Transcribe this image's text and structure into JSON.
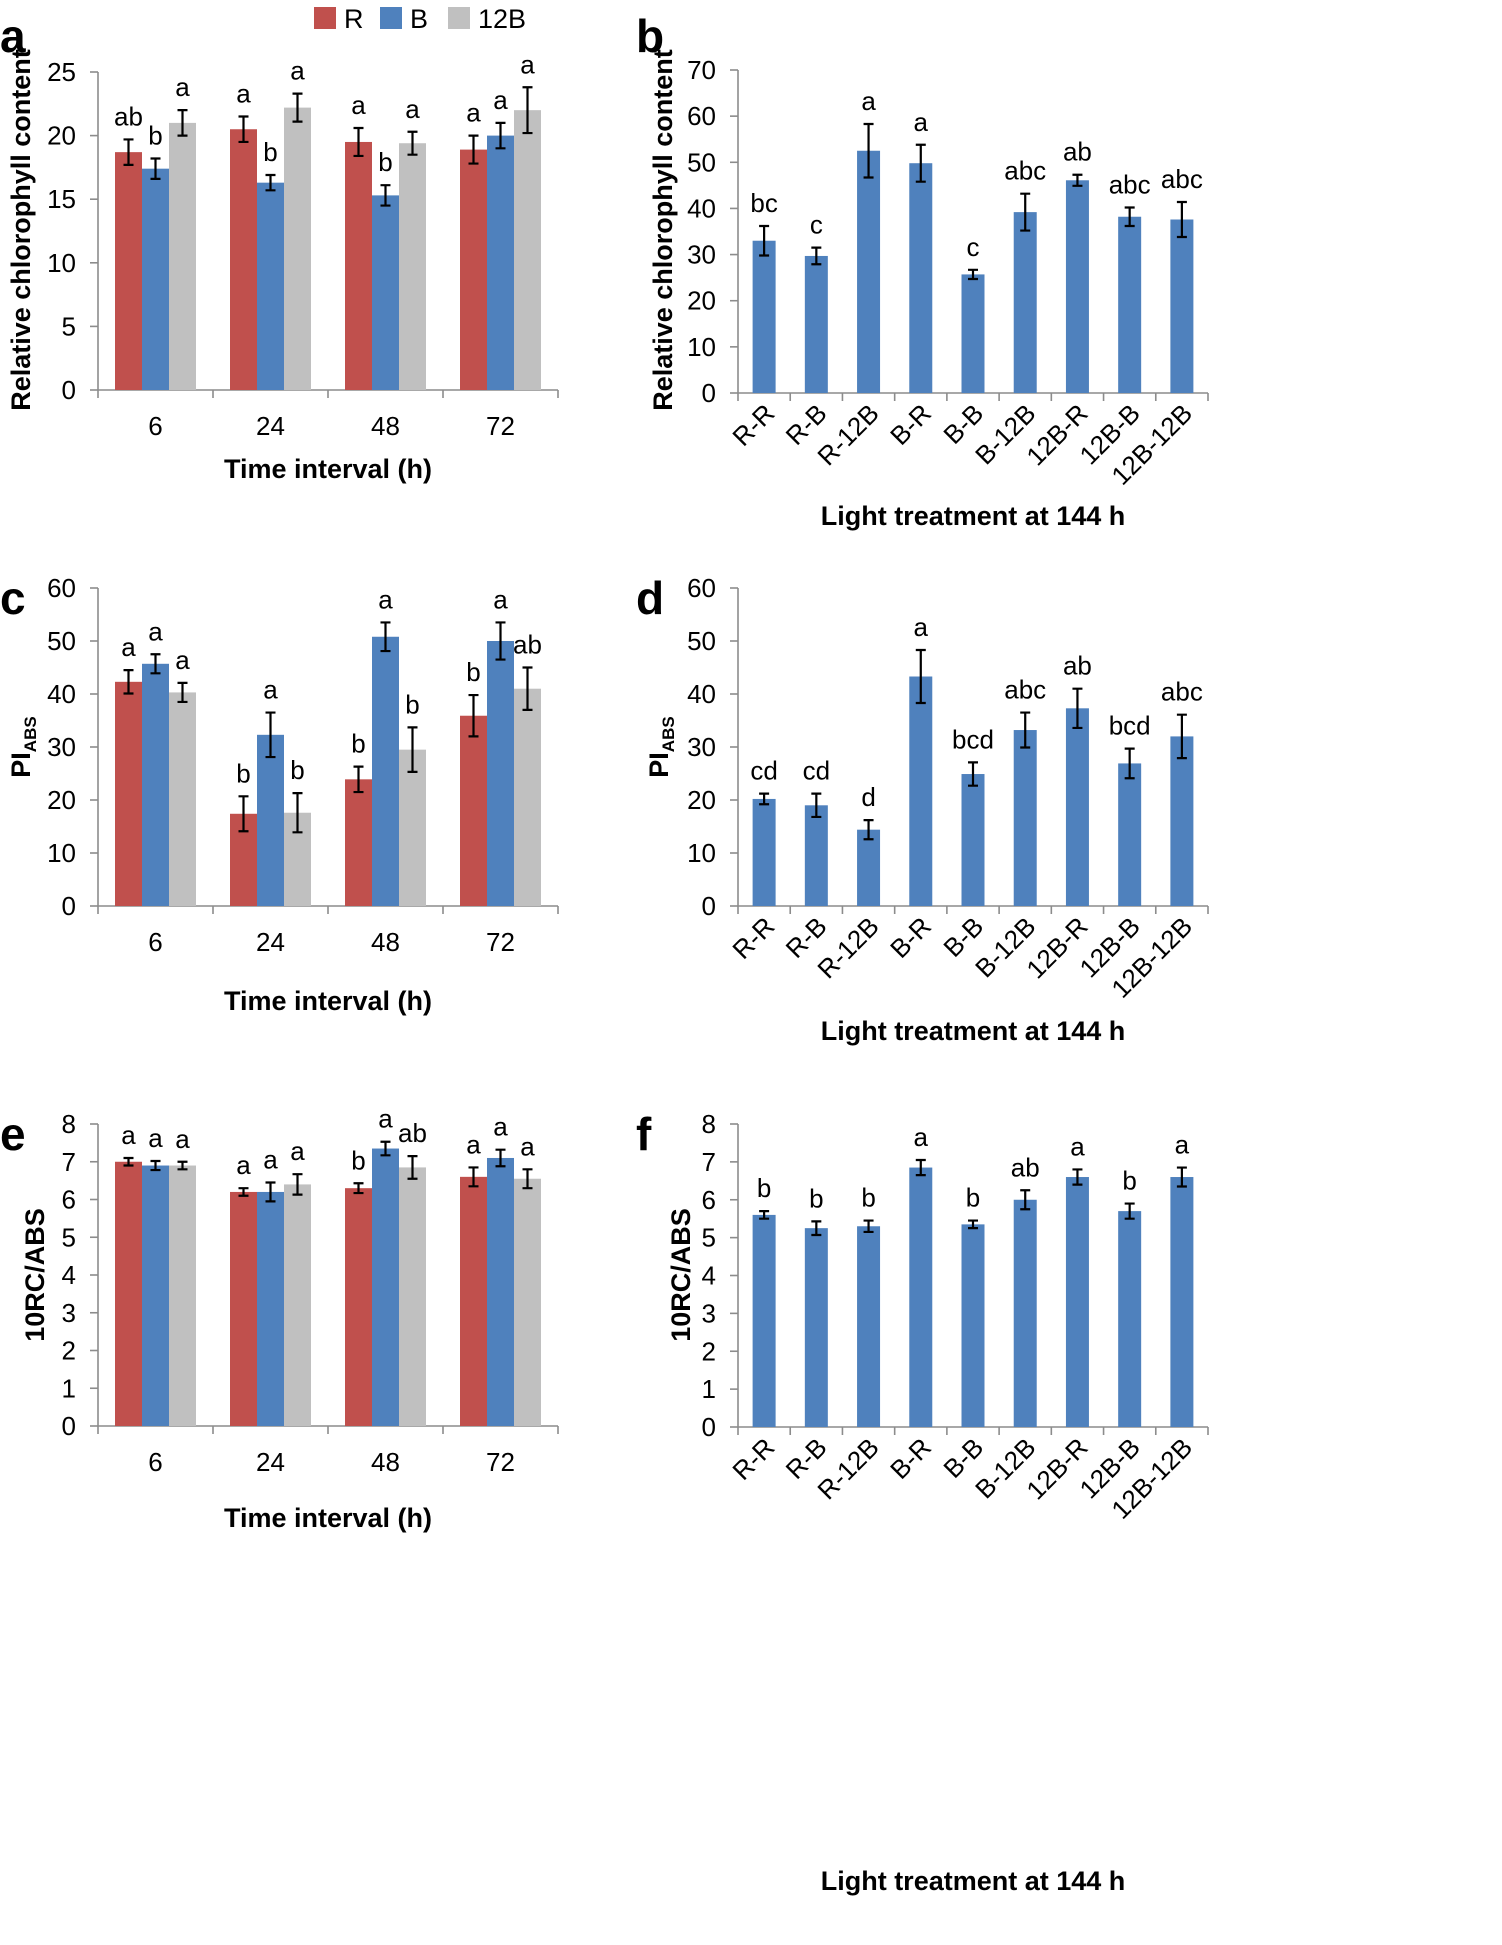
{
  "colors": {
    "R": "#c0504d",
    "B": "#4f81bd",
    "12B": "#c0c0c0"
  },
  "legend": [
    "R",
    "B",
    "12B"
  ],
  "chart_data": [
    {
      "id": "a",
      "type": "bar",
      "panel_label": "a",
      "categories": [
        "6",
        "24",
        "48",
        "72"
      ],
      "series": [
        {
          "name": "R",
          "values": [
            18.7,
            20.5,
            19.5,
            18.9
          ],
          "errors": [
            1.0,
            1.0,
            1.1,
            1.1
          ],
          "letters": [
            "ab",
            "a",
            "a",
            "a"
          ]
        },
        {
          "name": "B",
          "values": [
            17.4,
            16.3,
            15.3,
            20.0
          ],
          "errors": [
            0.8,
            0.6,
            0.8,
            1.0
          ],
          "letters": [
            "b",
            "b",
            "b",
            "a"
          ]
        },
        {
          "name": "12B",
          "values": [
            21.0,
            22.2,
            19.4,
            22.0
          ],
          "errors": [
            1.0,
            1.1,
            0.9,
            1.8
          ],
          "letters": [
            "a",
            "a",
            "a",
            "a"
          ]
        }
      ],
      "ylim": [
        0,
        25
      ],
      "yticks": [
        0,
        5,
        10,
        15,
        20,
        25
      ],
      "ylabel": "Relative chlorophyll content",
      "xlabel": "Time interval (h)"
    },
    {
      "id": "b",
      "type": "bar",
      "panel_label": "b",
      "categories": [
        "R-R",
        "R-B",
        "R-12B",
        "B-R",
        "B-B",
        "B-12B",
        "12B-R",
        "12B-B",
        "12B-12B"
      ],
      "series": [
        {
          "name": "B",
          "values": [
            33,
            29.7,
            52.5,
            49.8,
            25.7,
            39.2,
            46.1,
            38.2,
            37.6
          ],
          "errors": [
            3.2,
            1.8,
            5.8,
            4.0,
            1.0,
            4.0,
            1.2,
            2.0,
            3.8
          ],
          "letters": [
            "bc",
            "c",
            "a",
            "a",
            "c",
            "abc",
            "ab",
            "abc",
            "abc"
          ]
        }
      ],
      "ylim": [
        0,
        70
      ],
      "yticks": [
        0,
        10,
        20,
        30,
        40,
        50,
        60,
        70
      ],
      "ylabel": "Relative chlorophyll content",
      "xlabel": "Light treatment at 144 h"
    },
    {
      "id": "c",
      "type": "bar",
      "panel_label": "c",
      "categories": [
        "6",
        "24",
        "48",
        "72"
      ],
      "series": [
        {
          "name": "R",
          "values": [
            42.3,
            17.4,
            23.9,
            35.9
          ],
          "errors": [
            2.2,
            3.3,
            2.4,
            3.9
          ],
          "letters": [
            "a",
            "b",
            "b",
            "b"
          ]
        },
        {
          "name": "B",
          "values": [
            45.7,
            32.3,
            50.8,
            50.0
          ],
          "errors": [
            1.8,
            4.2,
            2.7,
            3.5
          ],
          "letters": [
            "a",
            "a",
            "a",
            "a"
          ]
        },
        {
          "name": "12B",
          "values": [
            40.3,
            17.6,
            29.5,
            41.0
          ],
          "errors": [
            1.8,
            3.7,
            4.2,
            4.0
          ],
          "letters": [
            "a",
            "b",
            "b",
            "ab"
          ]
        }
      ],
      "ylim": [
        0,
        60
      ],
      "yticks": [
        0,
        10,
        20,
        30,
        40,
        50,
        60
      ],
      "ylabel_main": "PI",
      "ylabel_sub": "ABS",
      "xlabel": "Time interval (h)"
    },
    {
      "id": "d",
      "type": "bar",
      "panel_label": "d",
      "categories": [
        "R-R",
        "R-B",
        "R-12B",
        "B-R",
        "B-B",
        "B-12B",
        "12B-R",
        "12B-B",
        "12B-12B"
      ],
      "series": [
        {
          "name": "B",
          "values": [
            20.2,
            19.0,
            14.4,
            43.3,
            24.9,
            33.2,
            37.3,
            26.9,
            32.0
          ],
          "errors": [
            1.0,
            2.2,
            1.8,
            5.0,
            2.2,
            3.3,
            3.7,
            2.8,
            4.1
          ],
          "letters": [
            "cd",
            "cd",
            "d",
            "a",
            "bcd",
            "abc",
            "ab",
            "bcd",
            "abc"
          ]
        }
      ],
      "ylim": [
        0,
        60
      ],
      "yticks": [
        0,
        10,
        20,
        30,
        40,
        50,
        60
      ],
      "ylabel_main": "PI",
      "ylabel_sub": "ABS",
      "xlabel": "Light treatment at 144 h"
    },
    {
      "id": "e",
      "type": "bar",
      "panel_label": "e",
      "categories": [
        "6",
        "24",
        "48",
        "72"
      ],
      "series": [
        {
          "name": "R",
          "values": [
            7.0,
            6.2,
            6.3,
            6.6
          ],
          "errors": [
            0.1,
            0.1,
            0.13,
            0.25
          ],
          "letters": [
            "a",
            "a",
            "b",
            "a"
          ]
        },
        {
          "name": "B",
          "values": [
            6.9,
            6.2,
            7.35,
            7.1
          ],
          "errors": [
            0.12,
            0.25,
            0.18,
            0.22
          ],
          "letters": [
            "a",
            "a",
            "a",
            "a"
          ]
        },
        {
          "name": "12B",
          "values": [
            6.9,
            6.4,
            6.85,
            6.55
          ],
          "errors": [
            0.1,
            0.27,
            0.3,
            0.25
          ],
          "letters": [
            "a",
            "a",
            "ab",
            "a"
          ]
        }
      ],
      "ylim": [
        0,
        8
      ],
      "yticks": [
        0,
        1,
        2,
        3,
        4,
        5,
        6,
        7,
        8
      ],
      "ylabel": "10RC/ABS",
      "xlabel": "Time interval (h)"
    },
    {
      "id": "f",
      "type": "bar",
      "panel_label": "f",
      "categories": [
        "R-R",
        "R-B",
        "R-12B",
        "B-R",
        "B-B",
        "B-12B",
        "12B-R",
        "12B-B",
        "12B-12B"
      ],
      "series": [
        {
          "name": "B",
          "values": [
            5.6,
            5.25,
            5.3,
            6.85,
            5.35,
            6.0,
            6.6,
            5.7,
            6.6
          ],
          "errors": [
            0.1,
            0.18,
            0.15,
            0.2,
            0.1,
            0.25,
            0.2,
            0.2,
            0.25
          ],
          "letters": [
            "b",
            "b",
            "b",
            "a",
            "b",
            "ab",
            "a",
            "b",
            "a"
          ]
        }
      ],
      "ylim": [
        0,
        8
      ],
      "yticks": [
        0,
        1,
        2,
        3,
        4,
        5,
        6,
        7,
        8
      ],
      "ylabel": "10RC/ABS",
      "xlabel": "Light treatment at 144 h"
    }
  ]
}
